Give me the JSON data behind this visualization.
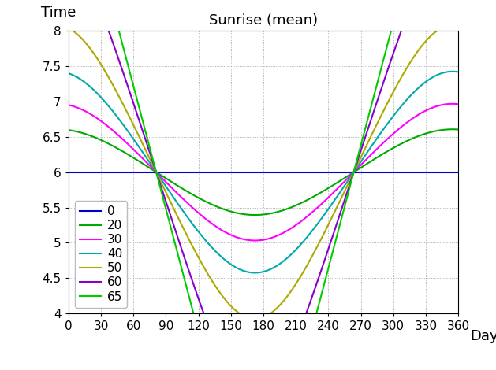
{
  "title": "Sunrise (mean)",
  "xlabel": "Day",
  "ylabel": "Time",
  "xlim": [
    0,
    360
  ],
  "ylim": [
    4,
    8
  ],
  "yticks": [
    4,
    4.5,
    5,
    5.5,
    6,
    6.5,
    7,
    7.5,
    8
  ],
  "xticks": [
    0,
    30,
    60,
    90,
    120,
    150,
    180,
    210,
    240,
    270,
    300,
    330,
    360
  ],
  "latitudes": [
    0,
    20,
    30,
    40,
    50,
    60,
    65
  ],
  "colors": {
    "0": "#0000cc",
    "20": "#00aa00",
    "30": "#ff00ff",
    "40": "#00aaaa",
    "50": "#aaaa00",
    "60": "#8800cc",
    "65": "#00cc00"
  },
  "background_color": "#ffffff",
  "title_fontsize": 13,
  "label_fontsize": 13,
  "tick_fontsize": 11,
  "legend_fontsize": 11
}
